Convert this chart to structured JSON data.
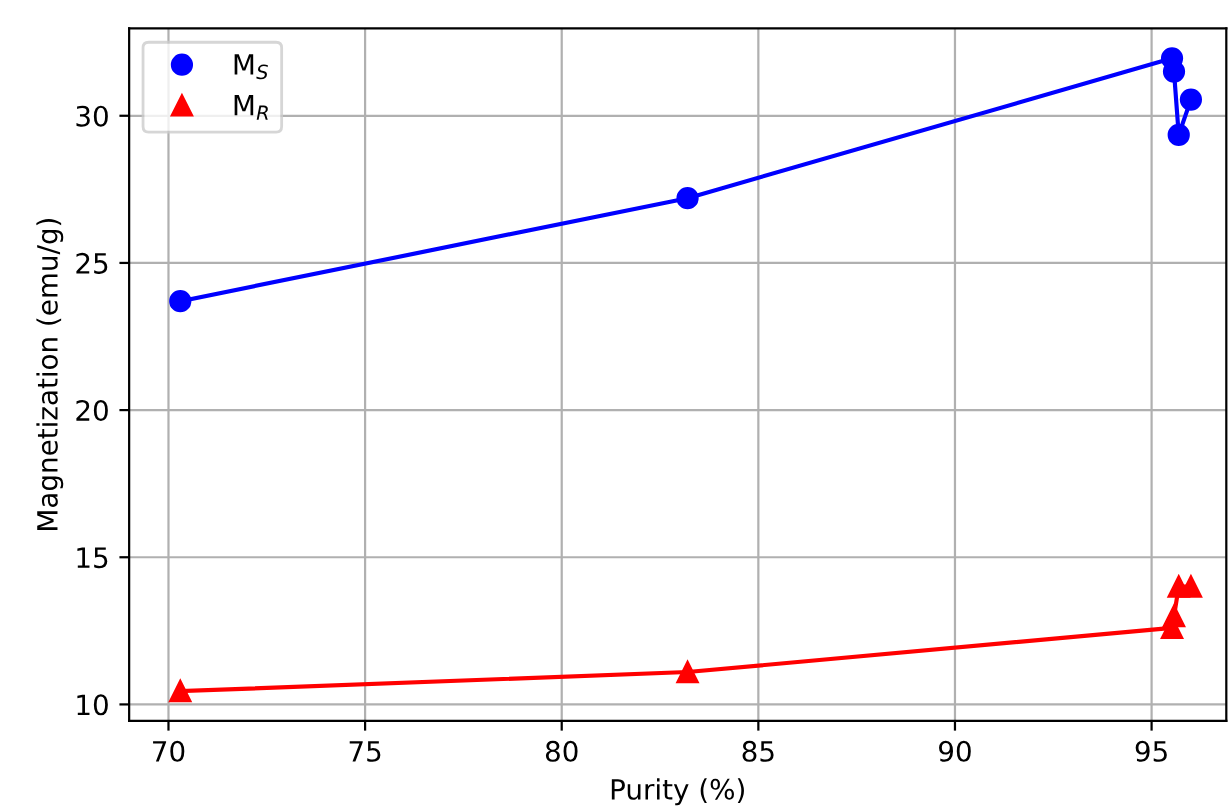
{
  "chart_data": {
    "type": "line",
    "xlabel": "Purity (%)",
    "ylabel": "Magnetization (emu/g)",
    "x": [
      70.3,
      83.2,
      95.52,
      95.57,
      95.69,
      96.0
    ],
    "series": [
      {
        "name": "M$_{S}$",
        "color": "#0000ff",
        "marker": "circle",
        "values": [
          23.7,
          27.2,
          31.95,
          31.5,
          29.35,
          30.55
        ]
      },
      {
        "name": "M$_{R}$",
        "color": "#ff0000",
        "marker": "triangle",
        "values": [
          10.45,
          11.1,
          12.6,
          13.0,
          14.0,
          14.0
        ]
      }
    ],
    "xlim": [
      69.0,
      96.9
    ],
    "ylim": [
      9.44,
      32.97
    ],
    "xticks": [
      70,
      75,
      80,
      85,
      90,
      95
    ],
    "yticks": [
      10,
      15,
      20,
      25,
      30
    ],
    "grid": true,
    "legend": "top left",
    "line_style": "solid"
  }
}
